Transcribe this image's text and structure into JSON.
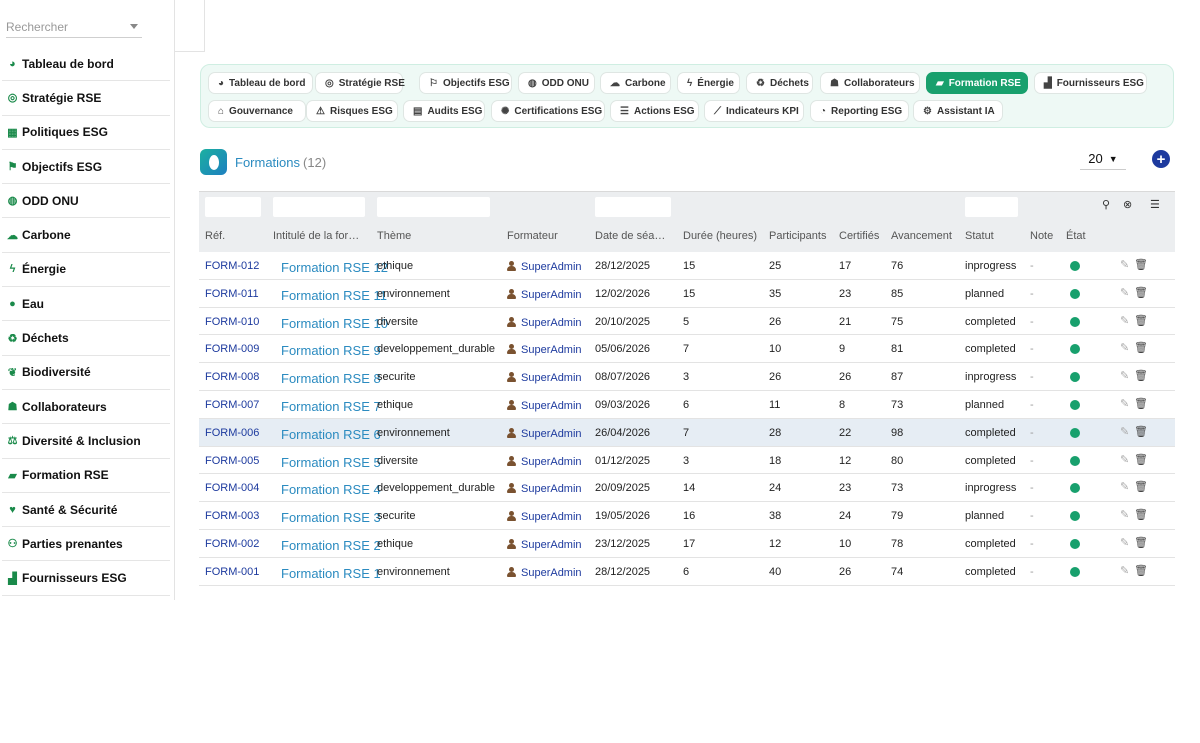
{
  "search": {
    "placeholder": "Rechercher"
  },
  "sidebar": {
    "items": [
      {
        "label": "Tableau de bord",
        "icon": "tachometer-icon",
        "glyph": "◕"
      },
      {
        "label": "Stratégie RSE",
        "icon": "bullseye-icon",
        "glyph": "◎"
      },
      {
        "label": "Politiques ESG",
        "icon": "document-icon",
        "glyph": "▦"
      },
      {
        "label": "Objectifs ESG",
        "icon": "flag-icon",
        "glyph": "⚑"
      },
      {
        "label": "ODD ONU",
        "icon": "globe-icon",
        "glyph": "◍"
      },
      {
        "label": "Carbone",
        "icon": "cloud-icon",
        "glyph": "☁"
      },
      {
        "label": "Énergie",
        "icon": "bolt-icon",
        "glyph": "ϟ"
      },
      {
        "label": "Eau",
        "icon": "droplet-icon",
        "glyph": "●"
      },
      {
        "label": "Déchets",
        "icon": "recycle-icon",
        "glyph": "♻"
      },
      {
        "label": "Biodiversité",
        "icon": "leaf-icon",
        "glyph": "❦"
      },
      {
        "label": "Collaborateurs",
        "icon": "users-icon",
        "glyph": "☗"
      },
      {
        "label": "Diversité & Inclusion",
        "icon": "scale-icon",
        "glyph": "⚖"
      },
      {
        "label": "Formation RSE",
        "icon": "graduation-cap-icon",
        "glyph": "▰"
      },
      {
        "label": "Santé & Sécurité",
        "icon": "heart-icon",
        "glyph": "♥"
      },
      {
        "label": "Parties prenantes",
        "icon": "handshake-icon",
        "glyph": "⚇"
      },
      {
        "label": "Fournisseurs ESG",
        "icon": "industry-icon",
        "glyph": "▟"
      }
    ]
  },
  "tabs": [
    {
      "label": "Tableau de bord",
      "icon": "tachometer-icon",
      "glyph": "◕",
      "active": false
    },
    {
      "label": "Stratégie RSE",
      "icon": "bullseye-icon",
      "glyph": "◎",
      "active": false
    },
    {
      "label": "Objectifs ESG",
      "icon": "flag-icon",
      "glyph": "⚐",
      "active": false
    },
    {
      "label": "ODD ONU",
      "icon": "globe-icon",
      "glyph": "◍",
      "active": false
    },
    {
      "label": "Carbone",
      "icon": "cloud-icon",
      "glyph": "☁",
      "active": false
    },
    {
      "label": "Énergie",
      "icon": "bolt-icon",
      "glyph": "ϟ",
      "active": false
    },
    {
      "label": "Déchets",
      "icon": "recycle-icon",
      "glyph": "♻",
      "active": false
    },
    {
      "label": "Collaborateurs",
      "icon": "users-icon",
      "glyph": "☗",
      "active": false
    },
    {
      "label": "Formation RSE",
      "icon": "graduation-cap-icon",
      "glyph": "▰",
      "active": true
    },
    {
      "label": "Fournisseurs ESG",
      "icon": "industry-icon",
      "glyph": "▟",
      "active": false
    },
    {
      "label": "Gouvernance",
      "icon": "bank-icon",
      "glyph": "⌂",
      "active": false
    },
    {
      "label": "Risques ESG",
      "icon": "warning-icon",
      "glyph": "⚠",
      "active": false
    },
    {
      "label": "Audits ESG",
      "icon": "clipboard-icon",
      "glyph": "▤",
      "active": false
    },
    {
      "label": "Certifications ESG",
      "icon": "certificate-icon",
      "glyph": "✺",
      "active": false
    },
    {
      "label": "Actions ESG",
      "icon": "list-icon",
      "glyph": "☰",
      "active": false
    },
    {
      "label": "Indicateurs KPI",
      "icon": "line-chart-icon",
      "glyph": "⟋",
      "active": false
    },
    {
      "label": "Reporting ESG",
      "icon": "pie-chart-icon",
      "glyph": "◔",
      "active": false
    },
    {
      "label": "Assistant IA",
      "icon": "robot-icon",
      "glyph": "⚙",
      "active": false
    }
  ],
  "header": {
    "title": "Formations",
    "count": "(12)",
    "per_page": "20",
    "add_label": "+"
  },
  "table": {
    "columns": [
      "Réf.",
      "Intitulé de la for…",
      "Thème",
      "Formateur",
      "Date de séa…",
      "Durée (heures)",
      "Participants",
      "Certifiés",
      "Avancement",
      "Statut",
      "Note",
      "État"
    ],
    "rows": [
      {
        "ref": "FORM-012",
        "title": "Formation RSE 12",
        "theme": "ethique",
        "trainer": "SuperAdmin",
        "date": "28/12/2025",
        "duration": "15",
        "participants": "25",
        "certified": "17",
        "progress": "76",
        "status": "inprogress",
        "note": "-"
      },
      {
        "ref": "FORM-011",
        "title": "Formation RSE 11",
        "theme": "environnement",
        "trainer": "SuperAdmin",
        "date": "12/02/2026",
        "duration": "15",
        "participants": "35",
        "certified": "23",
        "progress": "85",
        "status": "planned",
        "note": "-"
      },
      {
        "ref": "FORM-010",
        "title": "Formation RSE 10",
        "theme": "diversite",
        "trainer": "SuperAdmin",
        "date": "20/10/2025",
        "duration": "5",
        "participants": "26",
        "certified": "21",
        "progress": "75",
        "status": "completed",
        "note": "-"
      },
      {
        "ref": "FORM-009",
        "title": "Formation RSE 9",
        "theme": "developpement_durable",
        "trainer": "SuperAdmin",
        "date": "05/06/2026",
        "duration": "7",
        "participants": "10",
        "certified": "9",
        "progress": "81",
        "status": "completed",
        "note": "-"
      },
      {
        "ref": "FORM-008",
        "title": "Formation RSE 8",
        "theme": "securite",
        "trainer": "SuperAdmin",
        "date": "08/07/2026",
        "duration": "3",
        "participants": "26",
        "certified": "26",
        "progress": "87",
        "status": "inprogress",
        "note": "-"
      },
      {
        "ref": "FORM-007",
        "title": "Formation RSE 7",
        "theme": "ethique",
        "trainer": "SuperAdmin",
        "date": "09/03/2026",
        "duration": "6",
        "participants": "11",
        "certified": "8",
        "progress": "73",
        "status": "planned",
        "note": "-"
      },
      {
        "ref": "FORM-006",
        "title": "Formation RSE 6",
        "theme": "environnement",
        "trainer": "SuperAdmin",
        "date": "26/04/2026",
        "duration": "7",
        "participants": "28",
        "certified": "22",
        "progress": "98",
        "status": "completed",
        "note": "-"
      },
      {
        "ref": "FORM-005",
        "title": "Formation RSE 5",
        "theme": "diversite",
        "trainer": "SuperAdmin",
        "date": "01/12/2025",
        "duration": "3",
        "participants": "18",
        "certified": "12",
        "progress": "80",
        "status": "completed",
        "note": "-"
      },
      {
        "ref": "FORM-004",
        "title": "Formation RSE 4",
        "theme": "developpement_durable",
        "trainer": "SuperAdmin",
        "date": "20/09/2025",
        "duration": "14",
        "participants": "24",
        "certified": "23",
        "progress": "73",
        "status": "inprogress",
        "note": "-"
      },
      {
        "ref": "FORM-003",
        "title": "Formation RSE 3",
        "theme": "securite",
        "trainer": "SuperAdmin",
        "date": "19/05/2026",
        "duration": "16",
        "participants": "38",
        "certified": "24",
        "progress": "79",
        "status": "planned",
        "note": "-"
      },
      {
        "ref": "FORM-002",
        "title": "Formation RSE 2",
        "theme": "ethique",
        "trainer": "SuperAdmin",
        "date": "23/12/2025",
        "duration": "17",
        "participants": "12",
        "certified": "10",
        "progress": "78",
        "status": "completed",
        "note": "-"
      },
      {
        "ref": "FORM-001",
        "title": "Formation RSE 1",
        "theme": "environnement",
        "trainer": "SuperAdmin",
        "date": "28/12/2025",
        "duration": "6",
        "participants": "40",
        "certified": "26",
        "progress": "74",
        "status": "completed",
        "note": "-"
      }
    ]
  }
}
